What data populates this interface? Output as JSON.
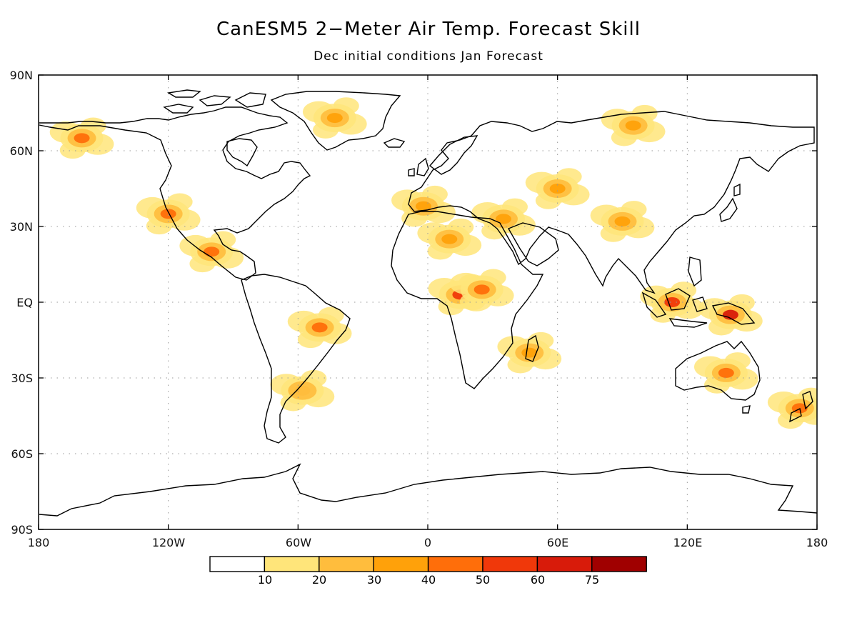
{
  "title": "CanESM5 2−Meter Air Temp. Forecast Skill",
  "subtitle": "Dec initial conditions   Jan Forecast",
  "axes": {
    "lat_ticks": [
      "90N",
      "60N",
      "30N",
      "EQ",
      "30S",
      "60S",
      "90S"
    ],
    "lon_ticks": [
      "180",
      "120W",
      "60W",
      "0",
      "60E",
      "120E",
      "180"
    ]
  },
  "colorbar": {
    "labels": [
      "10",
      "20",
      "30",
      "40",
      "50",
      "60",
      "75"
    ],
    "colors": [
      "#ffffff",
      "#ffe57a",
      "#ffbd3d",
      "#ffa10a",
      "#ff6e0a",
      "#f0380a",
      "#d81b0a",
      "#a00000"
    ]
  },
  "chart_data": {
    "type": "heatmap",
    "title": "CanESM5 2−Meter Air Temp. Forecast Skill",
    "subtitle": "Dec initial conditions   Jan Forecast",
    "x_range": [
      -180,
      180
    ],
    "y_range": [
      -90,
      90
    ],
    "levels": [
      10,
      20,
      30,
      40,
      50,
      60,
      75
    ],
    "grid": true,
    "regions": [
      {
        "lon": -160,
        "lat": 65,
        "level": 40
      },
      {
        "lon": -120,
        "lat": 35,
        "level": 40
      },
      {
        "lon": -100,
        "lat": 20,
        "level": 40
      },
      {
        "lon": -43,
        "lat": 73,
        "level": 30
      },
      {
        "lon": -50,
        "lat": -10,
        "level": 40
      },
      {
        "lon": -58,
        "lat": -35,
        "level": 20
      },
      {
        "lon": -2,
        "lat": 38,
        "level": 30
      },
      {
        "lon": 10,
        "lat": 25,
        "level": 30
      },
      {
        "lon": 15,
        "lat": 3,
        "level": 50
      },
      {
        "lon": 25,
        "lat": 5,
        "level": 40
      },
      {
        "lon": 35,
        "lat": 33,
        "level": 30
      },
      {
        "lon": 60,
        "lat": 45,
        "level": 30
      },
      {
        "lon": 90,
        "lat": 32,
        "level": 30
      },
      {
        "lon": 95,
        "lat": 70,
        "level": 30
      },
      {
        "lon": 113,
        "lat": 0,
        "level": 50
      },
      {
        "lon": 140,
        "lat": -5,
        "level": 60
      },
      {
        "lon": 138,
        "lat": -28,
        "level": 40
      },
      {
        "lon": 172,
        "lat": -42,
        "level": 40
      },
      {
        "lon": 47,
        "lat": -20,
        "level": 30
      }
    ]
  }
}
